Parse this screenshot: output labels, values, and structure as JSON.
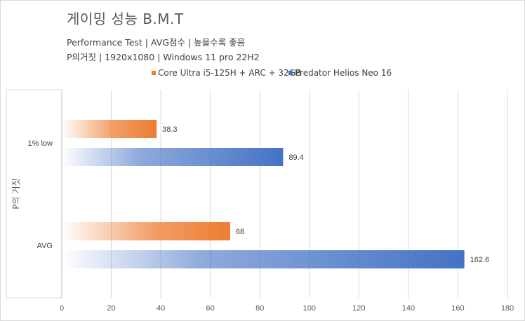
{
  "chart_data": {
    "type": "bar",
    "orientation": "horizontal",
    "title": "게이밍 성능 B.M.T",
    "subtitle_lines": [
      "Performance Test | AVG점수 | 높을수록 좋음",
      "P의거짓 | 1920x1080 | Windows 11 pro 22H2"
    ],
    "ylabel": "P의 거짓",
    "xlabel": "",
    "categories": [
      "1% low",
      "AVG"
    ],
    "series": [
      {
        "name": "Core Ultra i5-125H + ARC + 32GB",
        "color": "#ed7d31",
        "values": [
          38.3,
          68
        ],
        "labels": [
          "38.3",
          "68"
        ]
      },
      {
        "name": "Predator Helios Neo 16",
        "color": "#4472c4",
        "values": [
          89.4,
          162.6
        ],
        "labels": [
          "89.4",
          "162.6"
        ]
      }
    ],
    "xlim": [
      0,
      180
    ],
    "xticks": [
      "0",
      "20",
      "40",
      "60",
      "80",
      "100",
      "120",
      "140",
      "160",
      "180"
    ],
    "grid": true,
    "legend": "top-right"
  }
}
